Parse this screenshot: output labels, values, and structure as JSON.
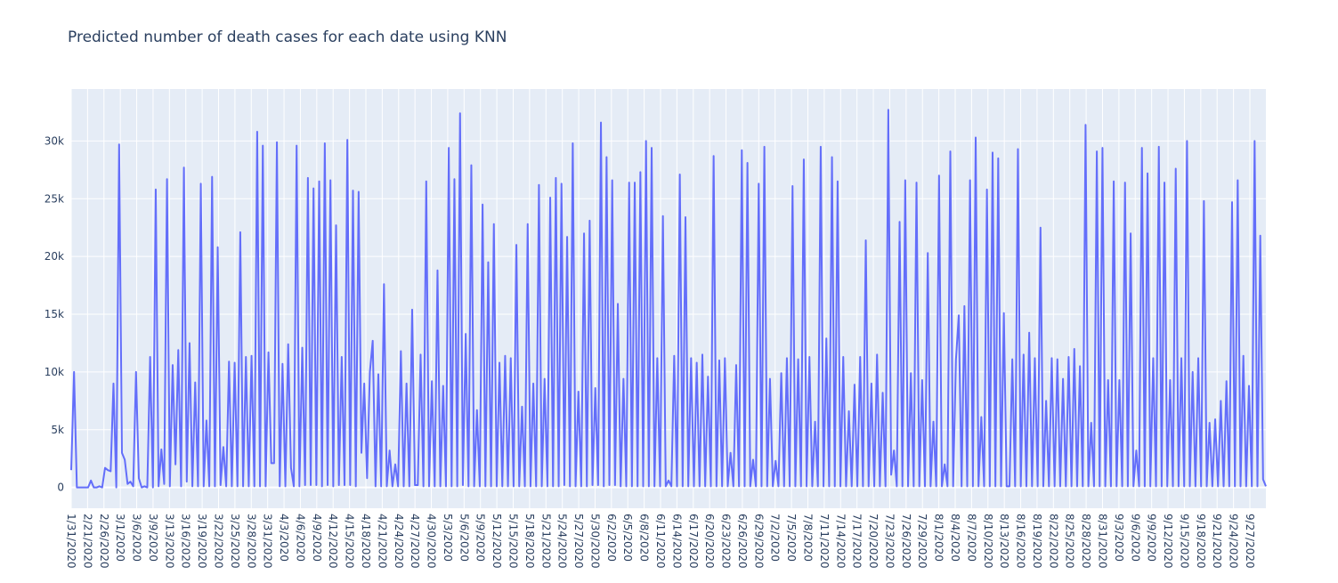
{
  "chart_data": {
    "type": "line",
    "title": "Predicted number of death cases for each date using KNN",
    "xlabel": "",
    "ylabel": "",
    "ylim": [
      -1800,
      34500
    ],
    "grid": true,
    "legend": "none",
    "y_ticks": [
      {
        "value": 0,
        "label": "0"
      },
      {
        "value": 5000,
        "label": "5k"
      },
      {
        "value": 10000,
        "label": "10k"
      },
      {
        "value": 15000,
        "label": "15k"
      },
      {
        "value": 20000,
        "label": "20k"
      },
      {
        "value": 25000,
        "label": "25k"
      },
      {
        "value": 30000,
        "label": "30k"
      }
    ],
    "x_tick_labels": [
      "1/31/2020",
      "2/21/2020",
      "2/26/2020",
      "3/1/2020",
      "3/6/2020",
      "3/9/2020",
      "3/13/2020",
      "3/16/2020",
      "3/19/2020",
      "3/22/2020",
      "3/25/2020",
      "3/28/2020",
      "3/31/2020",
      "4/3/2020",
      "4/6/2020",
      "4/9/2020",
      "4/12/2020",
      "4/15/2020",
      "4/18/2020",
      "4/21/2020",
      "4/24/2020",
      "4/27/2020",
      "4/30/2020",
      "5/3/2020",
      "5/6/2020",
      "5/9/2020",
      "5/12/2020",
      "5/15/2020",
      "5/18/2020",
      "5/21/2020",
      "5/24/2020",
      "5/27/2020",
      "5/30/2020",
      "6/2/2020",
      "6/5/2020",
      "6/8/2020",
      "6/11/2020",
      "6/14/2020",
      "6/17/2020",
      "6/20/2020",
      "6/23/2020",
      "6/26/2020",
      "6/29/2020",
      "7/2/2020",
      "7/5/2020",
      "7/8/2020",
      "7/11/2020",
      "7/14/2020",
      "7/17/2020",
      "7/20/2020",
      "7/23/2020",
      "7/26/2020",
      "7/29/2020",
      "8/1/2020",
      "8/4/2020",
      "8/7/2020",
      "8/10/2020",
      "8/13/2020",
      "8/16/2020",
      "8/19/2020",
      "8/22/2020",
      "8/25/2020",
      "8/28/2020",
      "8/31/2020",
      "9/3/2020",
      "9/6/2020",
      "9/9/2020",
      "9/12/2020",
      "9/15/2020",
      "9/18/2020",
      "9/21/2020",
      "9/24/2020",
      "9/27/2020"
    ],
    "series": [
      {
        "color": "#636efa",
        "values": [
          1500,
          10000,
          0,
          0,
          0,
          0,
          0,
          600,
          0,
          0,
          100,
          0,
          1700,
          1500,
          1400,
          9000,
          0,
          29700,
          3000,
          2400,
          300,
          500,
          100,
          10000,
          800,
          0,
          100,
          0,
          11300,
          0,
          25800,
          100,
          3300,
          300,
          26700,
          100,
          10600,
          2000,
          11900,
          100,
          27700,
          500,
          12500,
          100,
          9100,
          100,
          26300,
          100,
          5800,
          100,
          26900,
          100,
          20800,
          200,
          3500,
          100,
          10900,
          100,
          10800,
          100,
          22100,
          100,
          11300,
          100,
          11400,
          100,
          30800,
          100,
          29600,
          100,
          11700,
          2100,
          2100,
          29900,
          100,
          10700,
          100,
          12400,
          1700,
          100,
          29600,
          100,
          12100,
          200,
          26800,
          200,
          25900,
          200,
          26500,
          100,
          29800,
          200,
          26600,
          100,
          22700,
          200,
          11300,
          200,
          30100,
          200,
          25700,
          100,
          25600,
          3000,
          9000,
          800,
          10000,
          12700,
          100,
          9800,
          100,
          17600,
          100,
          3200,
          100,
          2000,
          100,
          11800,
          100,
          9000,
          100,
          15400,
          200,
          200,
          11500,
          100,
          26500,
          100,
          9200,
          100,
          18800,
          100,
          8800,
          100,
          29400,
          100,
          26700,
          100,
          32400,
          200,
          13300,
          100,
          27900,
          100,
          6700,
          100,
          24500,
          100,
          19500,
          100,
          22800,
          100,
          10800,
          100,
          11400,
          100,
          11200,
          100,
          21000,
          100,
          7000,
          100,
          22800,
          100,
          9000,
          100,
          26200,
          100,
          9400,
          100,
          25100,
          100,
          26800,
          100,
          26300,
          200,
          21700,
          100,
          29800,
          100,
          8300,
          100,
          22000,
          100,
          23100,
          200,
          8600,
          200,
          31600,
          100,
          28600,
          200,
          26600,
          200,
          15900,
          100,
          9400,
          100,
          26400,
          100,
          26400,
          100,
          27300,
          100,
          30000,
          100,
          29400,
          100,
          11200,
          100,
          23500,
          100,
          600,
          100,
          11400,
          100,
          27100,
          100,
          23400,
          100,
          11200,
          100,
          10800,
          100,
          11500,
          100,
          9600,
          100,
          28700,
          100,
          11000,
          100,
          11200,
          100,
          3000,
          100,
          10600,
          100,
          29200,
          100,
          28100,
          100,
          2400,
          100,
          26300,
          100,
          29500,
          100,
          9400,
          100,
          2300,
          100,
          9900,
          100,
          11200,
          100,
          26100,
          100,
          11100,
          100,
          28400,
          100,
          11300,
          100,
          5700,
          100,
          29500,
          100,
          12900,
          100,
          28600,
          100,
          26500,
          100,
          11300,
          100,
          6600,
          100,
          8900,
          100,
          11300,
          100,
          21400,
          100,
          9000,
          100,
          11500,
          100,
          8200,
          100,
          32700,
          1100,
          3200,
          100,
          23000,
          100,
          26600,
          100,
          9900,
          100,
          26400,
          100,
          9300,
          100,
          20300,
          100,
          5700,
          100,
          27000,
          100,
          2000,
          100,
          29100,
          100,
          11100,
          14900,
          100,
          15700,
          100,
          26600,
          100,
          30300,
          100,
          6100,
          100,
          25800,
          100,
          29000,
          100,
          28500,
          100,
          15100,
          100,
          100,
          11100,
          100,
          29300,
          100,
          11500,
          100,
          13400,
          100,
          11200,
          100,
          22500,
          100,
          7500,
          100,
          11200,
          100,
          11100,
          100,
          9400,
          100,
          11300,
          100,
          12000,
          100,
          10500,
          100,
          31400,
          100,
          5600,
          100,
          29100,
          100,
          29400,
          100,
          9300,
          100,
          26500,
          100,
          9300,
          100,
          26400,
          100,
          22000,
          100,
          3200,
          100,
          29400,
          100,
          27200,
          100,
          11200,
          100,
          29500,
          100,
          26400,
          100,
          9300,
          100,
          27600,
          100,
          11200,
          100,
          30000,
          100,
          10000,
          100,
          11200,
          100,
          24800,
          100,
          5600,
          100,
          5900,
          100,
          7500,
          100,
          9200,
          100,
          24700,
          100,
          26600,
          100,
          11400,
          100,
          8800,
          100,
          30000,
          100,
          21800,
          700,
          100
        ]
      }
    ]
  }
}
